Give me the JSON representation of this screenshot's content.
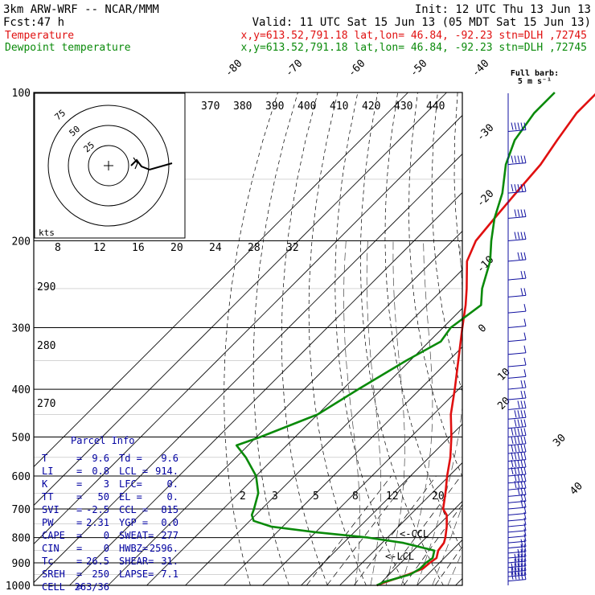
{
  "header": {
    "model": "3km ARW-WRF -- NCAR/MMM",
    "init": "Init: 12 UTC Thu 13 Jun 13",
    "fcst_label": "Fcst:",
    "fcst_value": "47 h",
    "valid": "Valid: 11 UTC Sat 15 Jun 13 (05 MDT Sat 15 Jun 13)",
    "temp_label": "Temperature",
    "dew_label": "Dewpoint temperature",
    "temp_loc": "x,y=613.52,791.18   lat,lon= 46.84, -92.23  stn=DLH ,72745",
    "dew_loc": "x,y=613.52,791.18   lat,lon= 46.84, -92.23  stn=DLH ,72745"
  },
  "barb_legend": {
    "line1": "Full barb:",
    "line2": "5 m s⁻¹"
  },
  "hodograph": {
    "kts_label": "kts",
    "ring_labels": [
      "25",
      "50",
      "75"
    ]
  },
  "parcel_info": {
    "title": "Parcel Info",
    "rows": [
      [
        "T",
        "=",
        "9.6",
        "Td =",
        "9.6"
      ],
      [
        "LI",
        "=",
        "0.8",
        "LCL =",
        "914."
      ],
      [
        "K",
        "=",
        "3",
        "LFC=",
        "0."
      ],
      [
        "TT",
        "=",
        "50",
        "EL =",
        "0."
      ],
      [
        "SVI",
        "=",
        "-2.5",
        "CCL =",
        "815"
      ],
      [
        "PW",
        "=",
        "2.31",
        "YGP =",
        "0.0"
      ],
      [
        "CAPE",
        "=",
        "0",
        "SWEAT=",
        "277"
      ],
      [
        "CIN",
        "=",
        "0",
        "HWBZ=",
        "2596."
      ],
      [
        "Tc",
        "=",
        "26.5",
        "SHEAR=",
        "31."
      ],
      [
        "SREH",
        "=",
        "250",
        "LAPSE=",
        "7.1"
      ],
      [
        "CELL",
        "=",
        "263/36",
        "",
        ""
      ]
    ]
  },
  "level_markers": {
    "ccl": "<-CCL",
    "lcl": "<-LCL"
  },
  "colors": {
    "temperature": "#e01010",
    "dewpoint": "#0a8a0a",
    "info": "#0000a0"
  },
  "chart_data": {
    "type": "line",
    "chart_kind": "skew-T log-p sounding",
    "y_axis": "pressure (hPa), log scale",
    "pressure_ticks": [
      100,
      200,
      300,
      400,
      500,
      600,
      700,
      800,
      900,
      1000
    ],
    "isotherm_labels": [
      "-80",
      "-70",
      "-60",
      "-50",
      "-40",
      "-30",
      "-20",
      "-10",
      "0",
      "10",
      "20",
      "30",
      "40"
    ],
    "theta_labels": [
      "370",
      "380",
      "390",
      "400",
      "410",
      "420",
      "430",
      "440"
    ],
    "theta_e_labels": [
      "8",
      "12",
      "16",
      "20",
      "24",
      "28",
      "32"
    ],
    "theta_left_labels": [
      "290",
      "280",
      "270"
    ],
    "mixing_ratio_labels": [
      "2",
      "3",
      "5",
      "8",
      "12",
      "20"
    ],
    "series": [
      {
        "name": "Temperature",
        "color": "#e01010",
        "p": [
          1000,
          985,
          950,
          925,
          900,
          880,
          850,
          820,
          800,
          760,
          720,
          700,
          650,
          600,
          550,
          500,
          450,
          400,
          350,
          300,
          270,
          250,
          220,
          200,
          180,
          160,
          140,
          125,
          110,
          100
        ],
        "t": [
          9.6,
          11.0,
          15.0,
          17.2,
          17.5,
          18.0,
          16.5,
          16.0,
          15.0,
          12.5,
          9.5,
          7.0,
          3.5,
          -0.5,
          -4.5,
          -9.5,
          -15.5,
          -21.0,
          -27.5,
          -35.0,
          -40.0,
          -44.0,
          -51.0,
          -54.0,
          -55.0,
          -56.0,
          -57.0,
          -59.0,
          -61.0,
          -61.0
        ]
      },
      {
        "name": "Dewpoint temperature",
        "color": "#0a8a0a",
        "p": [
          1000,
          985,
          950,
          925,
          900,
          880,
          850,
          820,
          800,
          780,
          760,
          740,
          720,
          700,
          650,
          600,
          550,
          520,
          500,
          450,
          400,
          350,
          320,
          300,
          270,
          250,
          220,
          200,
          180,
          160,
          140,
          125,
          110,
          100
        ],
        "t": [
          9.6,
          10.5,
          15.5,
          16.5,
          16.5,
          17.0,
          15.5,
          5.5,
          -5.0,
          -20.0,
          -33.0,
          -39.0,
          -41.0,
          -42.0,
          -45.0,
          -50.0,
          -57.5,
          -63.0,
          -59.0,
          -50.0,
          -46.0,
          -41.0,
          -37.0,
          -38.0,
          -36.0,
          -40.0,
          -45.0,
          -50.0,
          -55.0,
          -59.5,
          -66.0,
          -70.0,
          -72.0,
          -72.0
        ]
      }
    ]
  }
}
